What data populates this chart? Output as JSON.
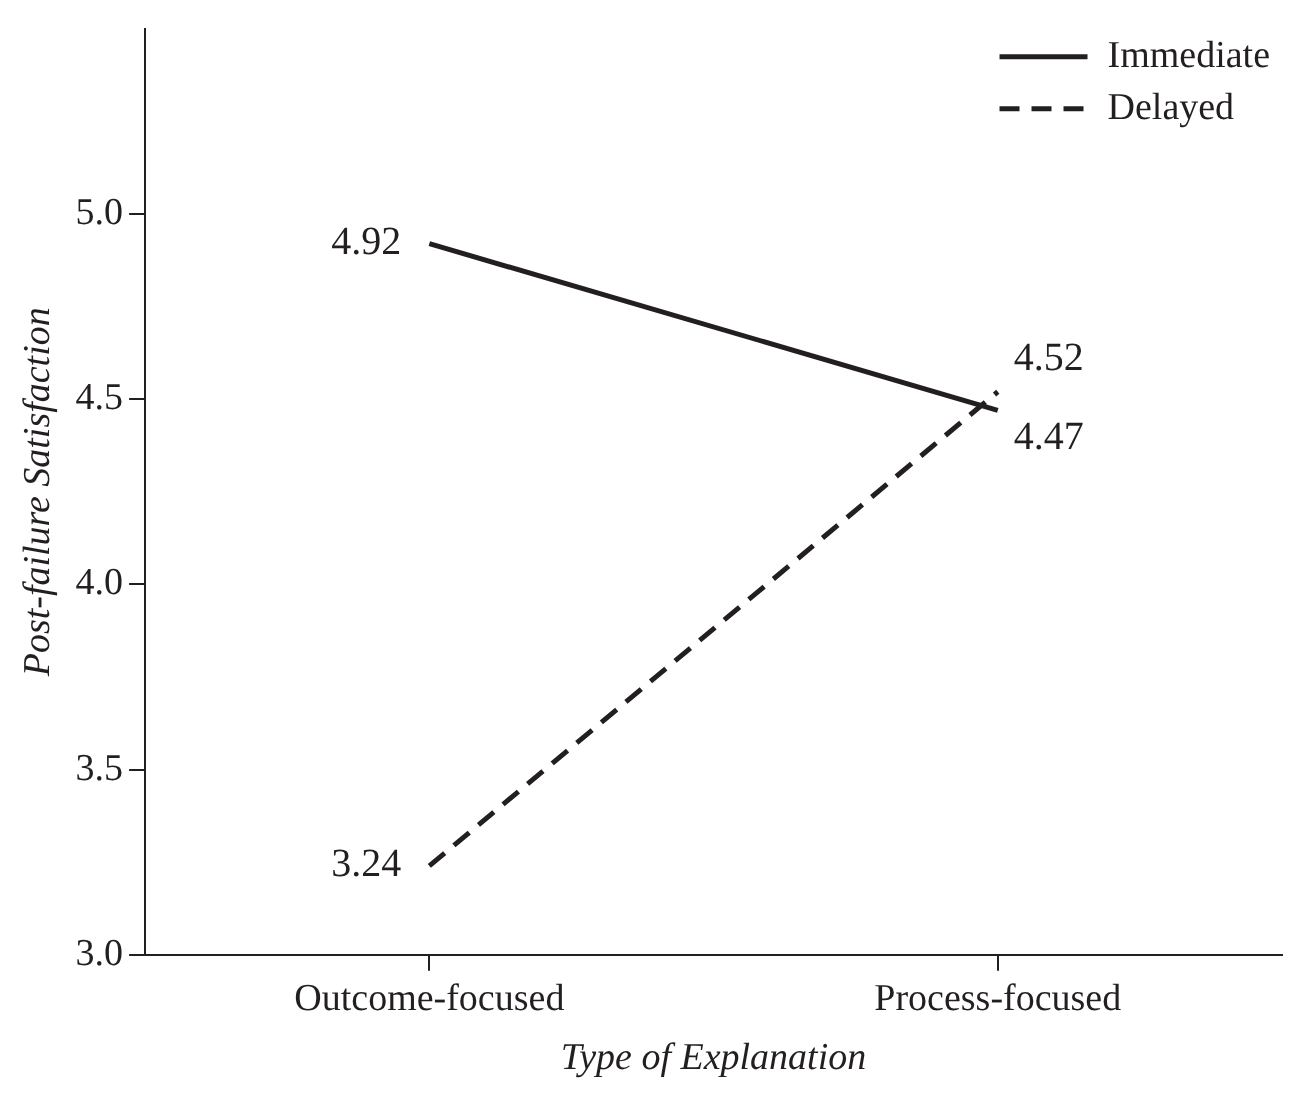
{
  "chart_data": {
    "type": "line",
    "xlabel": "Type of Explanation",
    "ylabel": "Post-failure Satisfaction",
    "categories": [
      "Outcome-focused",
      "Process-focused"
    ],
    "series": [
      {
        "name": "Immediate",
        "color": "#231f20",
        "values": [
          4.92,
          4.47
        ],
        "line_style": "solid"
      },
      {
        "name": "Delayed",
        "color": "#231f20",
        "values": [
          3.24,
          4.52
        ],
        "line_style": "dashed"
      }
    ],
    "ylim": [
      3.0,
      5.5
    ],
    "yticks": [
      {
        "value": 3,
        "label": "3.0"
      },
      3.5,
      {
        "value": 4,
        "label": "4.0"
      },
      4.5,
      {
        "value": 5,
        "label": "5.0"
      }
    ],
    "grid": false,
    "legend": "top right",
    "marker": "none",
    "data_labels": true
  }
}
